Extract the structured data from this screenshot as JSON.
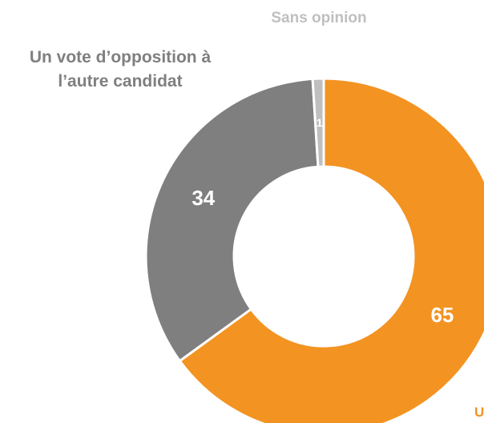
{
  "chart_data": {
    "type": "pie",
    "categories": [
      "U",
      "Un vote d’opposition à l’autre candidat",
      "Sans opinion"
    ],
    "category_lines": [
      [
        "U"
      ],
      [
        "Un vote d’opposition à",
        "l’autre candidat"
      ],
      [
        "Sans opinion"
      ]
    ],
    "values": [
      65,
      34,
      1
    ],
    "value_labels": [
      "65",
      "34",
      "1"
    ],
    "colors": [
      "#F39322",
      "#7F7F7F",
      "#BFBFBF"
    ],
    "label_colors": [
      "#F39322",
      "#7F7F7F",
      "#BFBFBF"
    ],
    "start_angle_deg": 0,
    "direction": "clockwise",
    "donut": true
  }
}
